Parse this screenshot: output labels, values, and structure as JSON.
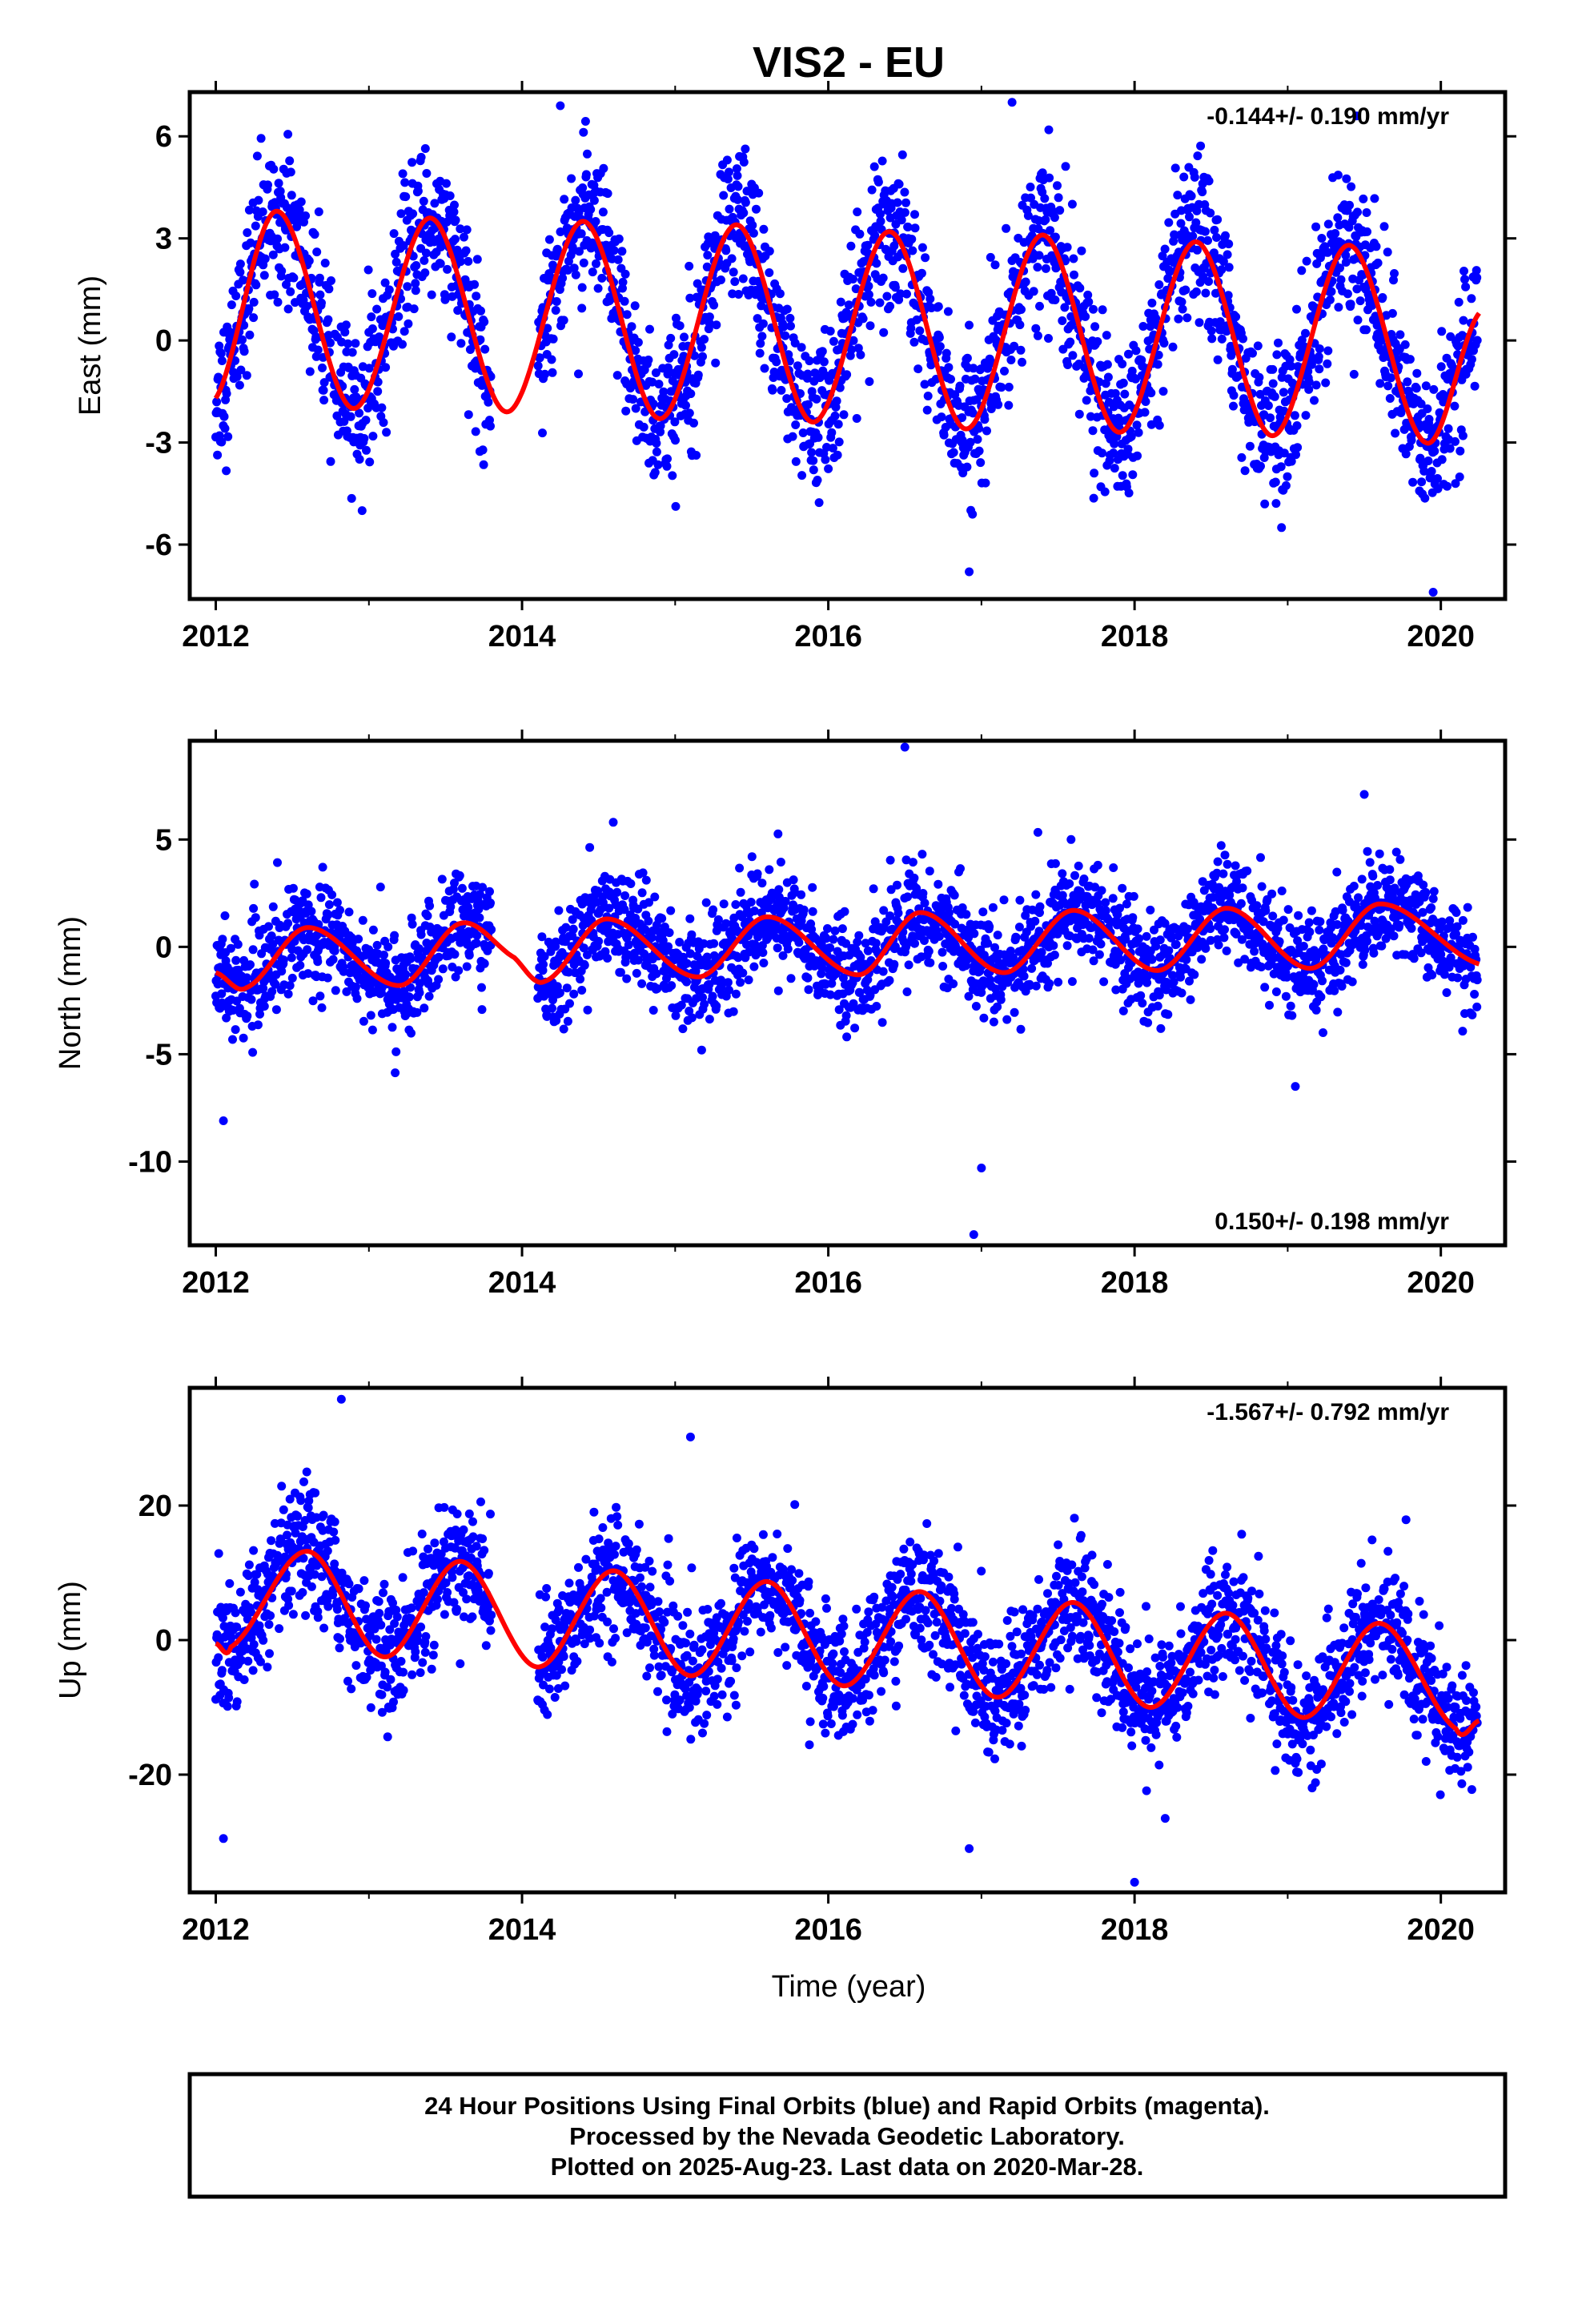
{
  "title": "VIS2 - EU",
  "xlabel": "Time (year)",
  "footer": [
    "24 Hour Positions Using Final Orbits (blue) and Rapid Orbits (magenta).",
    "Processed by the Nevada Geodetic Laboratory.",
    "Plotted on 2025-Aug-23. Last data on 2020-Mar-28."
  ],
  "colors": {
    "data_points": "#0000ff",
    "model_curve": "#ff0000",
    "frame": "#000000"
  },
  "chart_data": [
    {
      "type": "scatter",
      "panel": "east",
      "ylabel": "East (mm)",
      "rate_label": "-0.144+/- 0.190 mm/yr",
      "rate_position": "top-right",
      "xlim": [
        2011.83,
        2020.42
      ],
      "ylim": [
        -7.6,
        7.3
      ],
      "x_ticks": [
        2012,
        2014,
        2016,
        2018,
        2020
      ],
      "x_tick_labels": [
        "2012",
        "2014",
        "2016",
        "2018",
        "2020"
      ],
      "y_ticks": [
        6,
        3,
        0,
        -3,
        -6
      ],
      "y_tick_labels": [
        "6",
        "3",
        "0",
        "-3",
        "-6"
      ],
      "grid": false,
      "model_curve": {
        "name": "seasonal fit",
        "x": [
          2012.0,
          2012.4,
          2012.9,
          2013.4,
          2013.9,
          2014.4,
          2014.9,
          2015.4,
          2015.9,
          2016.4,
          2016.9,
          2017.4,
          2017.9,
          2018.4,
          2018.9,
          2019.4,
          2019.9,
          2020.25
        ],
        "y": [
          -1.7,
          3.8,
          -2.0,
          3.6,
          -2.1,
          3.5,
          -2.3,
          3.4,
          -2.4,
          3.2,
          -2.6,
          3.1,
          -2.7,
          2.9,
          -2.8,
          2.8,
          -3.0,
          0.8
        ]
      },
      "data_series": {
        "name": "daily positions",
        "x_range": [
          2012.0,
          2020.24
        ],
        "gap": [
          2013.8,
          2014.1
        ],
        "spread_mm": 1.1,
        "sample_outliers": [
          [
            2016.92,
            -6.8
          ],
          [
            2019.95,
            -7.4
          ],
          [
            2017.2,
            7.0
          ],
          [
            2014.25,
            6.9
          ],
          [
            2019.45,
            6.6
          ]
        ]
      }
    },
    {
      "type": "scatter",
      "panel": "north",
      "ylabel": "North (mm)",
      "rate_label": "0.150+/- 0.198 mm/yr",
      "rate_position": "bottom-right",
      "xlim": [
        2011.83,
        2020.42
      ],
      "ylim": [
        -13.9,
        9.6
      ],
      "x_ticks": [
        2012,
        2014,
        2016,
        2018,
        2020
      ],
      "x_tick_labels": [
        "2012",
        "2014",
        "2016",
        "2018",
        "2020"
      ],
      "y_ticks": [
        5,
        0,
        -5,
        -10
      ],
      "y_tick_labels": [
        "5",
        "0",
        "-5",
        "-10"
      ],
      "grid": false,
      "model_curve": {
        "name": "seasonal fit",
        "x": [
          2012.0,
          2012.2,
          2012.6,
          2013.2,
          2013.6,
          2013.95,
          2014.15,
          2014.55,
          2015.15,
          2015.6,
          2016.2,
          2016.6,
          2017.15,
          2017.6,
          2018.15,
          2018.6,
          2019.15,
          2019.6,
          2020.25
        ],
        "y": [
          -1.2,
          -1.9,
          0.9,
          -1.8,
          1.1,
          -0.5,
          -1.6,
          1.3,
          -1.4,
          1.4,
          -1.3,
          1.6,
          -1.2,
          1.7,
          -1.1,
          1.8,
          -1.0,
          2.0,
          -0.8
        ]
      },
      "data_series": {
        "name": "daily positions",
        "x_range": [
          2012.0,
          2020.24
        ],
        "gap": [
          2013.8,
          2014.1
        ],
        "spread_mm": 1.2,
        "sample_outliers": [
          [
            2016.5,
            9.3
          ],
          [
            2016.95,
            -13.4
          ],
          [
            2017.0,
            -10.3
          ],
          [
            2012.05,
            -8.1
          ],
          [
            2019.05,
            -6.5
          ],
          [
            2019.5,
            7.1
          ]
        ]
      }
    },
    {
      "type": "scatter",
      "panel": "up",
      "ylabel": "Up (mm)",
      "rate_label": "-1.567+/- 0.792 mm/yr",
      "rate_position": "top-right",
      "xlim": [
        2011.83,
        2020.42
      ],
      "ylim": [
        -37.5,
        37.5
      ],
      "x_ticks": [
        2012,
        2014,
        2016,
        2018,
        2020
      ],
      "x_tick_labels": [
        "2012",
        "2014",
        "2016",
        "2018",
        "2020"
      ],
      "y_ticks": [
        20,
        0,
        -20
      ],
      "y_tick_labels": [
        "20",
        "0",
        "-20"
      ],
      "grid": false,
      "model_curve": {
        "name": "seasonal fit",
        "x": [
          2012.0,
          2012.1,
          2012.6,
          2013.1,
          2013.6,
          2014.1,
          2014.6,
          2015.1,
          2015.6,
          2016.1,
          2016.6,
          2017.1,
          2017.6,
          2018.1,
          2018.6,
          2019.1,
          2019.6,
          2020.1,
          2020.25
        ],
        "y": [
          -0.5,
          -1.0,
          13.2,
          -2.5,
          11.7,
          -4.0,
          10.3,
          -5.3,
          8.7,
          -6.8,
          7.2,
          -8.5,
          5.6,
          -10.0,
          4.0,
          -11.5,
          2.5,
          -13.2,
          -12.0
        ]
      },
      "data_series": {
        "name": "daily positions",
        "x_range": [
          2012.0,
          2020.24
        ],
        "gap": [
          2013.8,
          2014.1
        ],
        "spread_mm": 4.5,
        "sample_outliers": [
          [
            2012.82,
            35.8
          ],
          [
            2015.1,
            30.2
          ],
          [
            2018.0,
            -36.0
          ],
          [
            2016.92,
            -31.0
          ],
          [
            2012.05,
            -29.5
          ],
          [
            2018.2,
            -26.5
          ]
        ]
      }
    }
  ]
}
